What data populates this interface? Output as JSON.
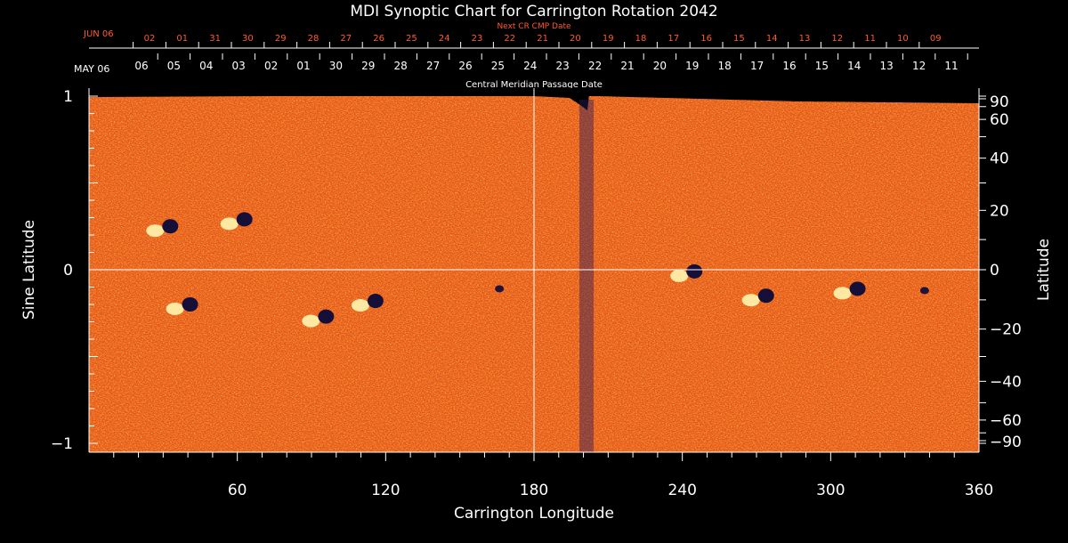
{
  "chart_data": {
    "type": "heatmap",
    "title": "MDI Synoptic Chart for Carrington Rotation 2042",
    "xlabel": "Carrington Longitude",
    "ylabel_left": "Sine Latitude",
    "ylabel_right": "Latitude",
    "xlim": [
      0,
      360
    ],
    "ylim_sine": [
      -1,
      1
    ],
    "x_ticks": [
      60,
      120,
      180,
      240,
      300,
      360
    ],
    "y_ticks_sine": [
      "1",
      "0",
      "−1"
    ],
    "y_ticks_latitude": [
      90,
      60,
      40,
      20,
      0,
      -20,
      -40,
      -60,
      -90
    ],
    "y_tick_labels_latitude": [
      "90",
      "60",
      "40",
      "20",
      "0",
      "−20",
      "−40",
      "−60",
      "−90"
    ],
    "top_axis_title": "Central Meridian Passage Date",
    "top_axis_month_label": "MAY 06",
    "top_axis_dates": [
      "06",
      "05",
      "04",
      "03",
      "02",
      "01",
      "30",
      "29",
      "28",
      "27",
      "26",
      "25",
      "24",
      "23",
      "22",
      "21",
      "20",
      "19",
      "18",
      "17",
      "16",
      "15",
      "14",
      "13",
      "12",
      "11"
    ],
    "next_axis_title": "Next CR CMP Date",
    "next_axis_month_label": "JUN 06",
    "next_axis_dates": [
      "02",
      "01",
      "31",
      "30",
      "29",
      "28",
      "27",
      "26",
      "25",
      "24",
      "23",
      "22",
      "21",
      "20",
      "19",
      "18",
      "17",
      "16",
      "15",
      "14",
      "13",
      "12",
      "11",
      "10",
      "09"
    ],
    "colormap": "black-red-orange-yellow-white (magnetic field polarity)",
    "background_color": "#e8501a",
    "highlight_colors": {
      "positive": "#fff6b0",
      "negative": "#0a0a3a"
    },
    "grid": "equator and 180 longitude lines",
    "data_gap_longitude": [
      195,
      203
    ],
    "active_regions": [
      {
        "lon": 38,
        "sinlat": -0.21,
        "polarity_pair": true
      },
      {
        "lon": 93,
        "sinlat": -0.28,
        "polarity_pair": true
      },
      {
        "lon": 113,
        "sinlat": -0.19,
        "polarity_pair": true
      },
      {
        "lon": 166,
        "sinlat": -0.11,
        "polarity_pair": false
      },
      {
        "lon": 30,
        "sinlat": 0.24,
        "polarity_pair": true
      },
      {
        "lon": 60,
        "sinlat": 0.28,
        "polarity_pair": true
      },
      {
        "lon": 242,
        "sinlat": -0.02,
        "polarity_pair": true
      },
      {
        "lon": 271,
        "sinlat": -0.16,
        "polarity_pair": true
      },
      {
        "lon": 308,
        "sinlat": -0.12,
        "polarity_pair": true
      },
      {
        "lon": 338,
        "sinlat": -0.12,
        "polarity_pair": false
      }
    ]
  }
}
